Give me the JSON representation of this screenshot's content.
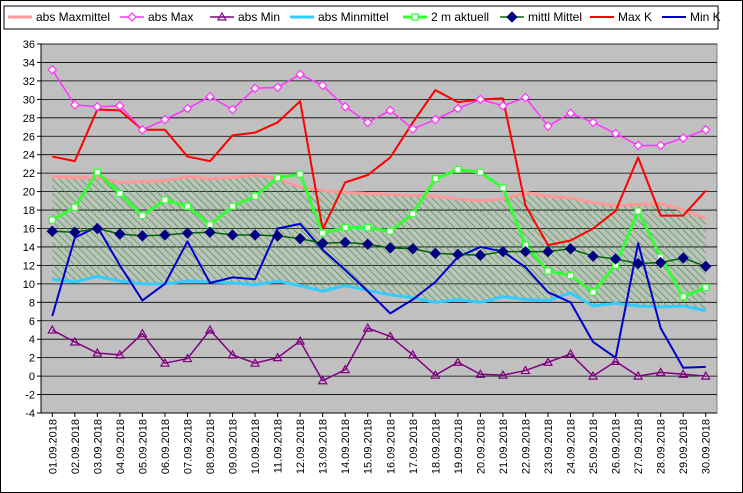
{
  "chart_data": {
    "type": "line",
    "title": "",
    "xlabel": "",
    "ylabel": "",
    "ylim": [
      -4,
      36
    ],
    "ytick_step": 2,
    "grid": "horizontal",
    "legend_position": "top",
    "colors": {
      "plot_background": "#c0c0c0",
      "band_hatch": "#2fa82f"
    },
    "categories": [
      "01.09.2018",
      "02.09.2018",
      "03.09.2018",
      "04.09.2018",
      "05.09.2018",
      "06.09.2018",
      "07.09.2018",
      "08.09.2018",
      "09.09.2018",
      "10.09.2018",
      "11.09.2018",
      "12.09.2018",
      "13.09.2018",
      "14.09.2018",
      "15.09.2018",
      "16.09.2018",
      "17.09.2018",
      "18.09.2018",
      "19.09.2018",
      "20.09.2018",
      "21.09.2018",
      "22.09.2018",
      "23.09.2018",
      "24.09.2018",
      "25.09.2018",
      "26.09.2018",
      "27.09.2018",
      "28.09.2018",
      "29.09.2018",
      "30.09.2018"
    ],
    "series": [
      {
        "name": "abs Maxmittel",
        "color": "#ff9999",
        "marker": "none",
        "values": [
          21.6,
          21.5,
          21.5,
          21.0,
          21.1,
          21.2,
          21.6,
          21.4,
          21.5,
          21.8,
          21.4,
          20.5,
          20.1,
          19.9,
          19.8,
          19.7,
          19.6,
          19.5,
          19.2,
          19.0,
          19.2,
          19.9,
          19.5,
          19.3,
          18.8,
          18.5,
          18.6,
          18.7,
          18.0,
          17.1
        ]
      },
      {
        "name": "abs Max",
        "color": "#ff33ff",
        "marker": "diamond-open",
        "values": [
          33.2,
          29.4,
          29.2,
          29.3,
          26.7,
          27.8,
          29.0,
          30.3,
          28.9,
          31.2,
          31.3,
          32.7,
          31.5,
          29.2,
          27.5,
          28.8,
          26.8,
          27.8,
          29.0,
          30.0,
          29.3,
          30.2,
          27.1,
          28.5,
          27.5,
          26.3,
          25.0,
          25.0,
          25.8,
          26.7
        ]
      },
      {
        "name": "abs Min",
        "color": "#800080",
        "marker": "triangle-open",
        "values": [
          5.0,
          3.7,
          2.5,
          2.3,
          4.6,
          1.4,
          1.9,
          5.0,
          2.3,
          1.4,
          2.0,
          3.8,
          -0.5,
          0.7,
          5.2,
          4.3,
          2.3,
          0.1,
          1.5,
          0.2,
          0.1,
          0.6,
          1.5,
          2.4,
          0.0,
          1.6,
          0.0,
          0.4,
          0.2,
          0.0
        ]
      },
      {
        "name": "abs Minmittel",
        "color": "#33ccff",
        "marker": "none",
        "values": [
          10.5,
          10.2,
          10.8,
          10.3,
          10.0,
          10.0,
          10.3,
          10.2,
          10.1,
          9.9,
          10.3,
          9.8,
          9.2,
          9.8,
          9.3,
          8.8,
          8.5,
          8.0,
          8.3,
          8.0,
          8.6,
          8.3,
          8.2,
          9.0,
          7.6,
          7.9,
          7.6,
          7.5,
          7.6,
          7.1
        ]
      },
      {
        "name": "2 m aktuell",
        "color": "#33ff33",
        "marker": "square-open",
        "values": [
          16.9,
          18.3,
          22.1,
          19.8,
          17.4,
          19.1,
          18.4,
          16.4,
          18.4,
          19.5,
          21.5,
          21.9,
          15.5,
          16.1,
          16.1,
          15.7,
          17.6,
          21.4,
          22.4,
          22.1,
          20.4,
          14.2,
          11.4,
          10.9,
          9.1,
          12.0,
          17.9,
          12.9,
          8.6,
          9.6
        ]
      },
      {
        "name": "mittl Mittel",
        "color": "#006600",
        "marker": "diamond-filled",
        "marker_fill": "#000080",
        "values": [
          15.7,
          15.6,
          16.0,
          15.4,
          15.2,
          15.3,
          15.5,
          15.6,
          15.3,
          15.3,
          15.2,
          14.9,
          14.4,
          14.5,
          14.3,
          13.9,
          13.8,
          13.3,
          13.2,
          13.1,
          13.5,
          13.5,
          13.5,
          13.8,
          13.0,
          12.7,
          12.2,
          12.3,
          12.8,
          11.9
        ]
      },
      {
        "name": "Max K",
        "color": "#ff0000",
        "marker": "none",
        "values": [
          23.8,
          23.3,
          28.9,
          28.8,
          26.7,
          26.7,
          23.8,
          23.3,
          26.1,
          26.4,
          27.5,
          29.8,
          15.9,
          21.0,
          21.8,
          23.7,
          27.5,
          31.0,
          29.7,
          30.0,
          30.1,
          18.5,
          14.2,
          14.7,
          16.0,
          17.9,
          23.7,
          17.4,
          17.4,
          20.1
        ]
      },
      {
        "name": "Min K",
        "color": "#0000cc",
        "marker": "none",
        "values": [
          6.5,
          15.0,
          16.2,
          12.0,
          8.2,
          10.0,
          14.6,
          10.1,
          10.7,
          10.5,
          16.0,
          16.5,
          13.7,
          11.5,
          9.2,
          6.8,
          8.3,
          10.2,
          12.9,
          14.0,
          13.5,
          11.8,
          9.1,
          8.0,
          3.7,
          2.0,
          14.4,
          5.2,
          0.9,
          1.0
        ]
      }
    ]
  }
}
